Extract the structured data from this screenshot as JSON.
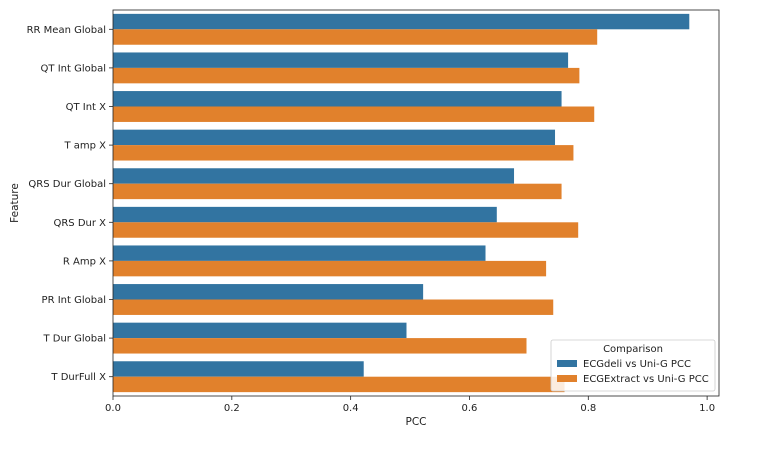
{
  "chart_data": {
    "type": "bar",
    "orientation": "horizontal",
    "title": "",
    "xlabel": "PCC",
    "ylabel": "Feature",
    "xlim": [
      0,
      1.02
    ],
    "xticks": [
      "0.0",
      "0.2",
      "0.4",
      "0.6",
      "0.8",
      "1.0"
    ],
    "grid": false,
    "categories": [
      "RR Mean Global",
      "QT Int Global",
      "QT Int X",
      "T amp X",
      "QRS Dur Global",
      "QRS Dur X",
      "R Amp X",
      "PR Int Global",
      "T Dur Global",
      "T DurFull X"
    ],
    "series": [
      {
        "name": "ECGdeli vs Uni-G PCC",
        "color": "#3274a1",
        "values": [
          0.97,
          0.766,
          0.755,
          0.744,
          0.675,
          0.646,
          0.627,
          0.522,
          0.494,
          0.422
        ]
      },
      {
        "name": "ECGExtract vs Uni-G PCC",
        "color": "#e1812c",
        "values": [
          0.815,
          0.785,
          0.81,
          0.775,
          0.755,
          0.783,
          0.729,
          0.741,
          0.696,
          0.76
        ]
      }
    ],
    "legend": {
      "title": "Comparison",
      "position": "lower-right"
    }
  }
}
